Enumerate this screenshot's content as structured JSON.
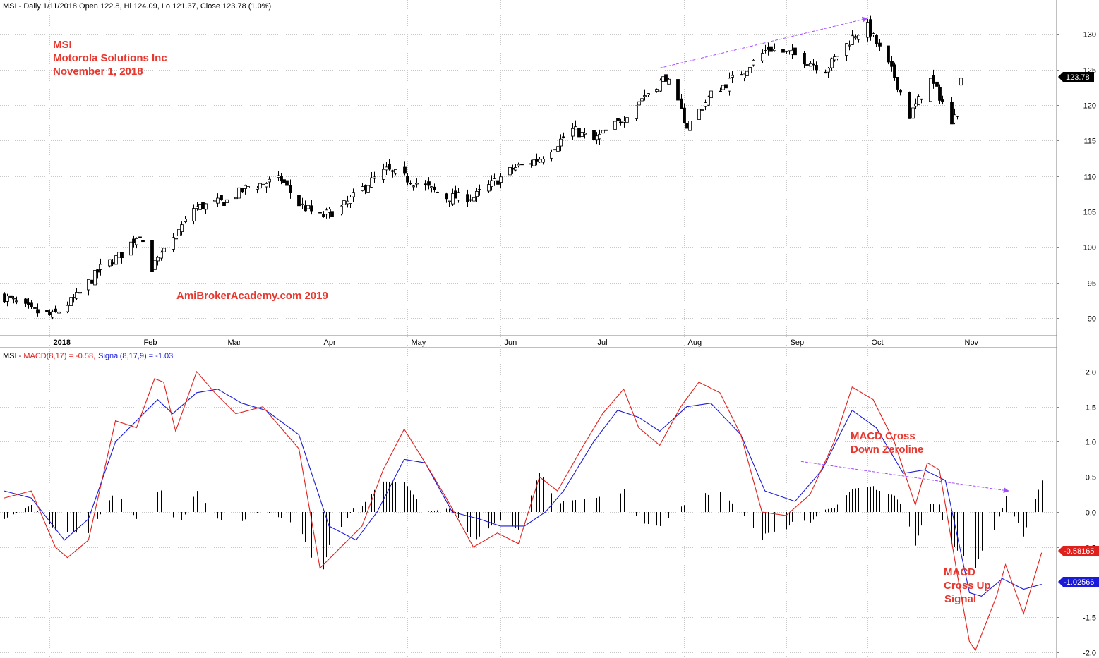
{
  "header": {
    "price_line": "MSI - Daily 1/11/2018 Open 122.8, Hi 124.09, Lo 121.37, Close 123.78 (1.0%)",
    "macd_prefix": "MSI - ",
    "macd_label": "MACD(8,17) = -0.58,",
    "signal_label": "Signal(8,17,9) = -1.03"
  },
  "annotations": {
    "ticker": "MSI",
    "company": "Motorola Solutions Inc",
    "date": "November 1, 2018",
    "watermark": "AmiBrokerAcademy.com  2019",
    "macd_cross_down_1": "MACD Cross",
    "macd_cross_down_2": "Down Zeroline",
    "macd_cross_up_1": "MACD",
    "macd_cross_up_2": "Cross Up",
    "macd_cross_up_3": "Signal"
  },
  "badges": {
    "last_price": "123.78",
    "macd_value": "-0.58165",
    "signal_value": "-1.02566"
  },
  "colors": {
    "up_candle": "#ffffff",
    "down_candle": "#000000",
    "macd": "#e0201c",
    "signal": "#1a1ad8",
    "histogram": "#000000",
    "trendline": "#a64dff",
    "annotation": "#e8372f",
    "grid": "#c8c8c8"
  },
  "chart_data": [
    {
      "type": "candlestick",
      "title": "MSI - Daily",
      "x_ticks": [
        "2018",
        "Feb",
        "Mar",
        "Apr",
        "May",
        "Jun",
        "Jul",
        "Aug",
        "Sep",
        "Oct",
        "Nov"
      ],
      "x_range": [
        "2017-12-18",
        "2018-11-01"
      ],
      "ylim": [
        87.5,
        133
      ],
      "y_ticks": [
        90,
        95,
        100,
        105,
        110,
        115,
        120,
        125,
        130
      ],
      "close_anchors": [
        [
          "2017-12-18",
          93.0
        ],
        [
          "2017-12-27",
          91.0
        ],
        [
          "2018-01-03",
          90.3
        ],
        [
          "2018-01-11",
          93.0
        ],
        [
          "2018-01-19",
          97.0
        ],
        [
          "2018-01-26",
          99.0
        ],
        [
          "2018-02-01",
          102.0
        ],
        [
          "2018-02-05",
          97.0
        ],
        [
          "2018-02-12",
          101.0
        ],
        [
          "2018-02-19",
          105.5
        ],
        [
          "2018-03-02",
          106.5
        ],
        [
          "2018-03-09",
          108.5
        ],
        [
          "2018-03-20",
          109.5
        ],
        [
          "2018-03-26",
          106.0
        ],
        [
          "2018-04-02",
          104.3
        ],
        [
          "2018-04-09",
          105.5
        ],
        [
          "2018-04-18",
          109.0
        ],
        [
          "2018-04-24",
          110.8
        ],
        [
          "2018-05-07",
          108.5
        ],
        [
          "2018-05-14",
          107.0
        ],
        [
          "2018-05-23",
          107.0
        ],
        [
          "2018-06-05",
          111.0
        ],
        [
          "2018-06-14",
          112.5
        ],
        [
          "2018-06-25",
          116.5
        ],
        [
          "2018-07-02",
          115.0
        ],
        [
          "2018-07-10",
          117.5
        ],
        [
          "2018-07-18",
          121.0
        ],
        [
          "2018-07-26",
          124.0
        ],
        [
          "2018-08-02",
          117.0
        ],
        [
          "2018-08-10",
          121.5
        ],
        [
          "2018-08-20",
          124.5
        ],
        [
          "2018-08-29",
          128.0
        ],
        [
          "2018-09-07",
          127.0
        ],
        [
          "2018-09-17",
          125.0
        ],
        [
          "2018-09-27",
          130.0
        ],
        [
          "2018-10-01",
          131.0
        ],
        [
          "2018-10-10",
          124.0
        ],
        [
          "2018-10-15",
          118.5
        ],
        [
          "2018-10-22",
          123.5
        ],
        [
          "2018-10-26",
          120.5
        ],
        [
          "2018-10-29",
          117.0
        ],
        [
          "2018-11-01",
          123.78
        ]
      ],
      "trendline": [
        [
          "2018-07-24",
          125.2
        ],
        [
          "2018-10-01",
          132.2
        ]
      ],
      "last_bar": {
        "date": "2018-11-01",
        "open": 122.8,
        "high": 124.09,
        "low": 121.37,
        "close": 123.78,
        "change_pct": 1.0
      }
    },
    {
      "type": "line",
      "title": "MACD(8,17) / Signal(8,17,9)",
      "ylim": [
        -2.05,
        2.15
      ],
      "y_ticks": [
        -2.0,
        -1.5,
        -1.0,
        -0.5,
        0.0,
        0.5,
        1.0,
        1.5,
        2.0
      ],
      "series": [
        {
          "name": "MACD(8,17)",
          "points": [
            [
              "2017-12-18",
              0.2
            ],
            [
              "2017-12-27",
              0.3
            ],
            [
              "2018-01-04",
              -0.5
            ],
            [
              "2018-01-08",
              -0.65
            ],
            [
              "2018-01-15",
              -0.4
            ],
            [
              "2018-01-24",
              1.3
            ],
            [
              "2018-01-31",
              1.2
            ],
            [
              "2018-02-06",
              1.9
            ],
            [
              "2018-02-09",
              1.85
            ],
            [
              "2018-02-13",
              1.15
            ],
            [
              "2018-02-20",
              2.0
            ],
            [
              "2018-02-26",
              1.7
            ],
            [
              "2018-03-05",
              1.4
            ],
            [
              "2018-03-14",
              1.5
            ],
            [
              "2018-03-26",
              0.9
            ],
            [
              "2018-04-02",
              -0.8
            ],
            [
              "2018-04-09",
              -0.5
            ],
            [
              "2018-04-16",
              -0.2
            ],
            [
              "2018-04-23",
              0.6
            ],
            [
              "2018-04-30",
              1.18
            ],
            [
              "2018-05-07",
              0.7
            ],
            [
              "2018-05-14",
              0.2
            ],
            [
              "2018-05-23",
              -0.5
            ],
            [
              "2018-05-31",
              -0.3
            ],
            [
              "2018-06-07",
              -0.45
            ],
            [
              "2018-06-14",
              0.5
            ],
            [
              "2018-06-20",
              0.3
            ],
            [
              "2018-06-28",
              0.9
            ],
            [
              "2018-07-05",
              1.4
            ],
            [
              "2018-07-12",
              1.75
            ],
            [
              "2018-07-17",
              1.2
            ],
            [
              "2018-07-24",
              0.95
            ],
            [
              "2018-07-31",
              1.5
            ],
            [
              "2018-08-06",
              1.85
            ],
            [
              "2018-08-13",
              1.7
            ],
            [
              "2018-08-20",
              1.1
            ],
            [
              "2018-08-27",
              0.0
            ],
            [
              "2018-09-04",
              -0.05
            ],
            [
              "2018-09-12",
              0.25
            ],
            [
              "2018-09-20",
              1.0
            ],
            [
              "2018-09-26",
              1.78
            ],
            [
              "2018-10-03",
              1.6
            ],
            [
              "2018-10-10",
              1.0
            ],
            [
              "2018-10-17",
              0.1
            ],
            [
              "2018-10-21",
              0.7
            ],
            [
              "2018-10-25",
              0.6
            ],
            [
              "2018-10-31",
              -0.9
            ],
            [
              "2018-11-04",
              -1.85
            ],
            [
              "2018-11-06",
              -1.97
            ],
            [
              "2018-11-13",
              -1.2
            ],
            [
              "2018-11-16",
              -0.75
            ],
            [
              "2018-11-22",
              -1.45
            ],
            [
              "2018-11-28",
              -0.58
            ]
          ]
        },
        {
          "name": "Signal(8,17,9)",
          "points": [
            [
              "2017-12-18",
              0.3
            ],
            [
              "2017-12-27",
              0.2
            ],
            [
              "2018-01-07",
              -0.4
            ],
            [
              "2018-01-15",
              -0.1
            ],
            [
              "2018-01-24",
              1.0
            ],
            [
              "2018-01-31",
              1.3
            ],
            [
              "2018-02-07",
              1.6
            ],
            [
              "2018-02-12",
              1.4
            ],
            [
              "2018-02-20",
              1.7
            ],
            [
              "2018-02-27",
              1.75
            ],
            [
              "2018-03-07",
              1.55
            ],
            [
              "2018-03-15",
              1.45
            ],
            [
              "2018-03-26",
              1.1
            ],
            [
              "2018-04-05",
              -0.2
            ],
            [
              "2018-04-14",
              -0.4
            ],
            [
              "2018-04-21",
              0.0
            ],
            [
              "2018-04-30",
              0.75
            ],
            [
              "2018-05-07",
              0.7
            ],
            [
              "2018-05-16",
              0.0
            ],
            [
              "2018-05-25",
              -0.1
            ],
            [
              "2018-06-01",
              -0.2
            ],
            [
              "2018-06-09",
              -0.2
            ],
            [
              "2018-06-16",
              0.0
            ],
            [
              "2018-06-22",
              0.3
            ],
            [
              "2018-07-02",
              1.0
            ],
            [
              "2018-07-10",
              1.45
            ],
            [
              "2018-07-17",
              1.35
            ],
            [
              "2018-07-24",
              1.15
            ],
            [
              "2018-08-02",
              1.5
            ],
            [
              "2018-08-10",
              1.55
            ],
            [
              "2018-08-20",
              1.1
            ],
            [
              "2018-08-28",
              0.3
            ],
            [
              "2018-09-07",
              0.15
            ],
            [
              "2018-09-16",
              0.6
            ],
            [
              "2018-09-26",
              1.45
            ],
            [
              "2018-10-04",
              1.2
            ],
            [
              "2018-10-13",
              0.55
            ],
            [
              "2018-10-20",
              0.6
            ],
            [
              "2018-10-27",
              0.45
            ],
            [
              "2018-11-04",
              -1.15
            ],
            [
              "2018-11-08",
              -1.2
            ],
            [
              "2018-11-15",
              -0.95
            ],
            [
              "2018-11-22",
              -1.1
            ],
            [
              "2018-11-28",
              -1.03
            ]
          ]
        }
      ],
      "trendline": [
        [
          "2018-09-09",
          0.72
        ],
        [
          "2018-11-17",
          0.3
        ]
      ]
    }
  ]
}
